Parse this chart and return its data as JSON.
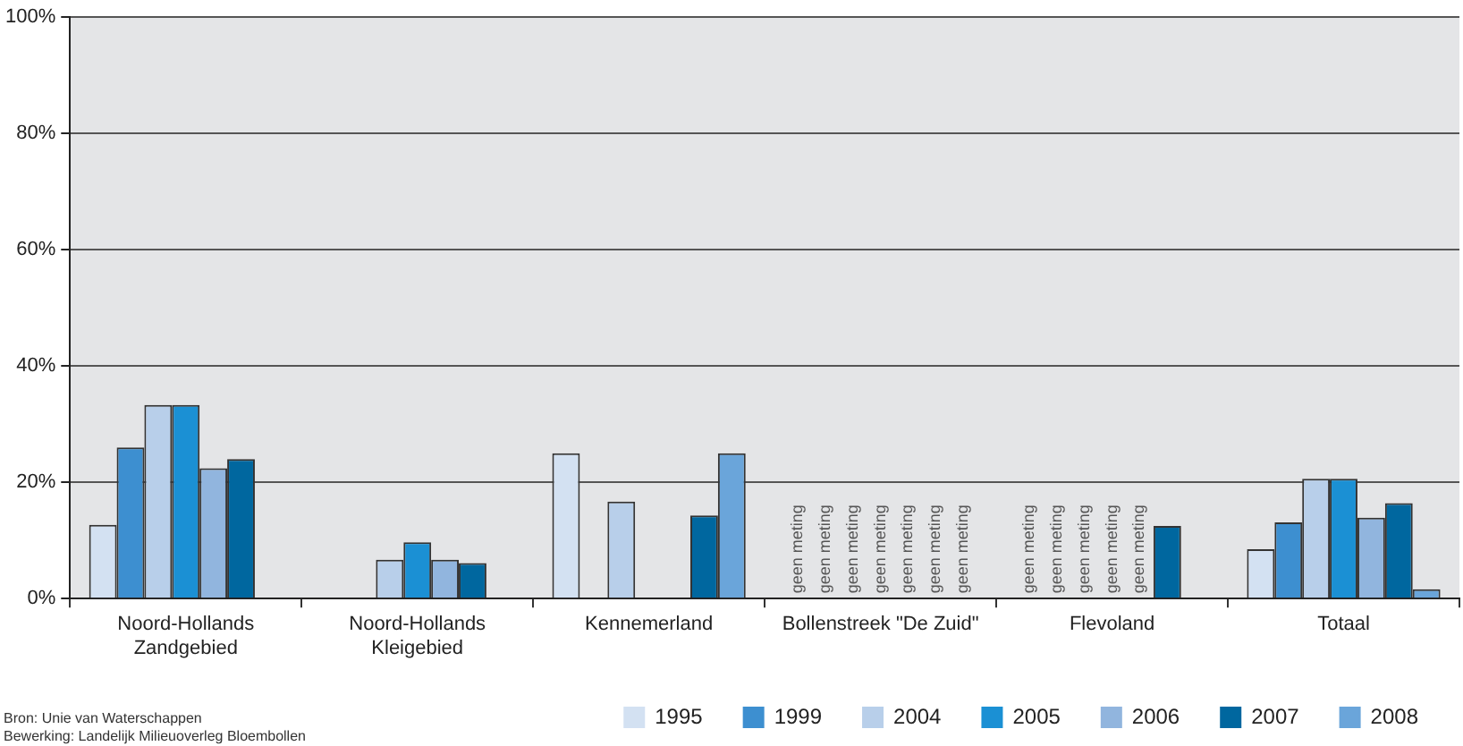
{
  "chart_data": {
    "type": "bar",
    "categories": [
      "Noord-Hollands\nZandgebied",
      "Noord-Hollands\nKleigebied",
      "Kennemerland",
      "Bollenstreek \"De Zuid\"",
      "Flevoland",
      "Totaal"
    ],
    "series": [
      {
        "name": "1995",
        "color": "#d3e1f2",
        "values": [
          12.7,
          null,
          25,
          null,
          null,
          8.5
        ],
        "value_labels": [
          null,
          null,
          null,
          "geen meting",
          "geen meting",
          null
        ]
      },
      {
        "name": "1999",
        "color": "#3d8fd0",
        "values": [
          26,
          null,
          null,
          null,
          null,
          13.1
        ],
        "value_labels": [
          null,
          null,
          null,
          "geen meting",
          "geen meting",
          null
        ]
      },
      {
        "name": "2004",
        "color": "#b8cfea",
        "values": [
          33.3,
          6.7,
          16.7,
          null,
          null,
          20.6
        ],
        "value_labels": [
          null,
          null,
          null,
          "geen meting",
          "geen meting",
          null
        ]
      },
      {
        "name": "2005",
        "color": "#1b90d4",
        "values": [
          33.3,
          9.7,
          null,
          null,
          null,
          20.6
        ],
        "value_labels": [
          null,
          null,
          null,
          "geen meting",
          "geen meting",
          null
        ]
      },
      {
        "name": "2006",
        "color": "#91b5de",
        "values": [
          22.4,
          6.7,
          null,
          null,
          null,
          13.9
        ],
        "value_labels": [
          null,
          null,
          null,
          "geen meting",
          "geen meting",
          null
        ]
      },
      {
        "name": "2007",
        "color": "#00679f",
        "values": [
          24,
          6.1,
          14.3,
          null,
          12.5,
          16.4
        ],
        "value_labels": [
          null,
          null,
          null,
          "geen meting",
          null,
          null
        ]
      },
      {
        "name": "2008",
        "color": "#6aa5da",
        "values": [
          null,
          null,
          25,
          null,
          null,
          1.6
        ],
        "value_labels": [
          null,
          null,
          null,
          "geen meting",
          null,
          null
        ]
      }
    ],
    "ylim": [
      0,
      100
    ],
    "yticks": [
      {
        "value": 0,
        "label": "0%"
      },
      {
        "value": 20,
        "label": "20%"
      },
      {
        "value": 40,
        "label": "40%"
      },
      {
        "value": 60,
        "label": "60%"
      },
      {
        "value": 80,
        "label": "80%"
      },
      {
        "value": 100,
        "label": "100%"
      }
    ],
    "grid": "y",
    "legend": "bottom",
    "annotations": [
      "Bron: Unie van Waterschappen",
      "Bewerking: Landelijk Milieuoverleg Bloembollen"
    ]
  }
}
